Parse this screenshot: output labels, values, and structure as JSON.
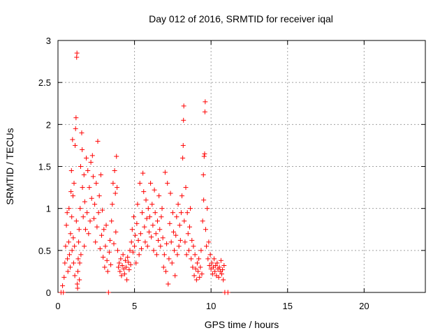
{
  "chart_data": {
    "type": "scatter",
    "title": "Day 012 of 2016, SRMTID for receiver iqal",
    "xlabel": "GPS time / hours",
    "ylabel": "SRMTID / TECUs",
    "xlim": [
      0,
      24
    ],
    "ylim": [
      0,
      3
    ],
    "xticks": [
      0,
      5,
      10,
      15,
      20
    ],
    "yticks": [
      0,
      0.5,
      1,
      1.5,
      2,
      2.5,
      3
    ],
    "xtick_labels": [
      "0",
      "5",
      "10",
      "15",
      "20"
    ],
    "ytick_labels": [
      "0",
      "0.5",
      "1",
      "1.5",
      "2",
      "2.5",
      "3"
    ],
    "grid": true,
    "marker": "+",
    "series": [
      {
        "name": "SRMTID",
        "color": "#ff0000",
        "points": [
          [
            0.2,
            0.0
          ],
          [
            0.35,
            0.0
          ],
          [
            0.3,
            0.08
          ],
          [
            0.4,
            0.18
          ],
          [
            0.45,
            0.35
          ],
          [
            0.5,
            0.55
          ],
          [
            0.55,
            0.8
          ],
          [
            0.6,
            0.95
          ],
          [
            0.62,
            0.4
          ],
          [
            0.65,
            0.25
          ],
          [
            0.7,
            0.6
          ],
          [
            0.72,
            1.0
          ],
          [
            0.75,
            0.45
          ],
          [
            0.8,
            0.3
          ],
          [
            0.82,
            0.7
          ],
          [
            0.85,
            1.2
          ],
          [
            0.88,
            1.45
          ],
          [
            0.9,
            0.9
          ],
          [
            0.92,
            0.5
          ],
          [
            0.95,
            1.82
          ],
          [
            0.98,
            1.15
          ],
          [
            1.0,
            0.65
          ],
          [
            1.02,
            0.35
          ],
          [
            1.05,
            1.3
          ],
          [
            1.08,
            0.55
          ],
          [
            1.1,
            0.2
          ],
          [
            1.12,
            1.75
          ],
          [
            1.15,
            1.95
          ],
          [
            1.18,
            2.08
          ],
          [
            1.2,
            0.85
          ],
          [
            1.22,
            2.8
          ],
          [
            1.24,
            2.85
          ],
          [
            1.26,
            0.1
          ],
          [
            1.28,
            0.05
          ],
          [
            1.3,
            0.25
          ],
          [
            1.32,
            0.4
          ],
          [
            1.35,
            0.6
          ],
          [
            1.38,
            0.75
          ],
          [
            1.4,
            0.15
          ],
          [
            1.42,
            0.35
          ],
          [
            1.45,
            1.0
          ],
          [
            1.48,
            1.5
          ],
          [
            1.5,
            0.45
          ],
          [
            1.55,
            1.9
          ],
          [
            1.58,
            1.7
          ],
          [
            1.6,
            1.25
          ],
          [
            1.65,
            0.9
          ],
          [
            1.7,
            1.4
          ],
          [
            1.72,
            0.55
          ],
          [
            1.75,
            1.08
          ],
          [
            1.8,
            0.75
          ],
          [
            1.85,
            1.6
          ],
          [
            1.9,
            0.95
          ],
          [
            1.95,
            1.45
          ],
          [
            2.0,
            0.7
          ],
          [
            2.05,
            1.25
          ],
          [
            2.1,
            0.85
          ],
          [
            2.15,
            1.55
          ],
          [
            2.2,
            1.12
          ],
          [
            2.25,
            1.63
          ],
          [
            2.3,
            1.38
          ],
          [
            2.35,
            0.88
          ],
          [
            2.4,
            1.05
          ],
          [
            2.45,
            0.6
          ],
          [
            2.5,
            1.3
          ],
          [
            2.55,
            0.78
          ],
          [
            2.6,
            1.8
          ],
          [
            2.65,
            0.95
          ],
          [
            2.7,
            1.15
          ],
          [
            2.75,
            0.52
          ],
          [
            2.8,
            1.4
          ],
          [
            2.85,
            0.68
          ],
          [
            2.9,
            0.98
          ],
          [
            2.95,
            0.42
          ],
          [
            3.0,
            0.75
          ],
          [
            3.05,
            0.3
          ],
          [
            3.1,
            0.55
          ],
          [
            3.15,
            0.8
          ],
          [
            3.2,
            0.38
          ],
          [
            3.25,
            0.25
          ],
          [
            3.3,
            0.0
          ],
          [
            3.35,
            0.48
          ],
          [
            3.4,
            0.62
          ],
          [
            3.45,
            0.33
          ],
          [
            3.5,
            0.85
          ],
          [
            3.55,
            1.05
          ],
          [
            3.6,
            1.3
          ],
          [
            3.65,
            0.58
          ],
          [
            3.7,
            1.45
          ],
          [
            3.75,
            1.18
          ],
          [
            3.78,
            0.72
          ],
          [
            3.82,
            1.62
          ],
          [
            3.86,
            1.25
          ],
          [
            3.9,
            0.5
          ],
          [
            3.95,
            0.3
          ],
          [
            4.0,
            0.35
          ],
          [
            4.05,
            0.25
          ],
          [
            4.1,
            0.4
          ],
          [
            4.15,
            0.2
          ],
          [
            4.2,
            0.32
          ],
          [
            4.25,
            0.45
          ],
          [
            4.3,
            0.28
          ],
          [
            4.35,
            0.22
          ],
          [
            4.4,
            0.38
          ],
          [
            4.45,
            0.3
          ],
          [
            4.5,
            0.15
          ],
          [
            4.55,
            0.42
          ],
          [
            4.6,
            0.36
          ],
          [
            4.65,
            0.27
          ],
          [
            4.7,
            0.5
          ],
          [
            4.75,
            0.33
          ],
          [
            4.8,
            0.6
          ],
          [
            4.85,
            0.75
          ],
          [
            4.9,
            0.48
          ],
          [
            4.95,
            0.9
          ],
          [
            5.0,
            0.55
          ],
          [
            5.05,
            0.68
          ],
          [
            5.1,
            0.35
          ],
          [
            5.15,
            0.82
          ],
          [
            5.2,
            1.05
          ],
          [
            5.25,
            0.62
          ],
          [
            5.3,
            0.45
          ],
          [
            5.35,
            1.3
          ],
          [
            5.4,
            0.7
          ],
          [
            5.45,
            0.52
          ],
          [
            5.5,
            0.95
          ],
          [
            5.55,
            1.42
          ],
          [
            5.6,
            1.2
          ],
          [
            5.65,
            0.78
          ],
          [
            5.7,
            0.6
          ],
          [
            5.75,
            1.1
          ],
          [
            5.8,
            0.88
          ],
          [
            5.85,
            0.55
          ],
          [
            5.9,
            1.0
          ],
          [
            5.95,
            0.72
          ],
          [
            6.0,
            0.9
          ],
          [
            6.05,
            1.3
          ],
          [
            6.1,
            0.66
          ],
          [
            6.15,
            1.05
          ],
          [
            6.2,
            0.8
          ],
          [
            6.25,
            0.5
          ],
          [
            6.3,
            1.22
          ],
          [
            6.35,
            0.95
          ],
          [
            6.4,
            0.7
          ],
          [
            6.45,
            0.45
          ],
          [
            6.5,
            0.85
          ],
          [
            6.55,
            0.62
          ],
          [
            6.6,
            1.15
          ],
          [
            6.65,
            0.75
          ],
          [
            6.7,
            0.55
          ],
          [
            6.75,
            0.9
          ],
          [
            6.8,
            1.0
          ],
          [
            6.85,
            0.65
          ],
          [
            6.9,
            0.3
          ],
          [
            6.95,
            0.45
          ],
          [
            7.0,
            1.43
          ],
          [
            7.05,
            0.25
          ],
          [
            7.1,
            0.58
          ],
          [
            7.15,
            1.3
          ],
          [
            7.2,
            0.1
          ],
          [
            7.25,
            0.4
          ],
          [
            7.3,
            0.82
          ],
          [
            7.35,
            1.18
          ],
          [
            7.4,
            0.6
          ],
          [
            7.45,
            0.35
          ],
          [
            7.5,
            0.95
          ],
          [
            7.55,
            0.72
          ],
          [
            7.6,
            0.5
          ],
          [
            7.65,
            0.2
          ],
          [
            7.7,
            0.68
          ],
          [
            7.75,
            0.9
          ],
          [
            7.8,
            0.45
          ],
          [
            7.85,
            1.05
          ],
          [
            7.9,
            0.55
          ],
          [
            7.95,
            0.8
          ],
          [
            8.0,
            0.62
          ],
          [
            8.05,
            0.95
          ],
          [
            8.1,
            1.15
          ],
          [
            8.15,
            1.6
          ],
          [
            8.18,
            1.75
          ],
          [
            8.2,
            2.05
          ],
          [
            8.22,
            2.22
          ],
          [
            8.25,
            0.85
          ],
          [
            8.3,
            0.6
          ],
          [
            8.35,
            1.25
          ],
          [
            8.4,
            0.45
          ],
          [
            8.45,
            0.95
          ],
          [
            8.5,
            0.7
          ],
          [
            8.55,
            0.5
          ],
          [
            8.6,
            0.78
          ],
          [
            8.65,
            1.0
          ],
          [
            8.7,
            0.4
          ],
          [
            8.75,
            0.62
          ],
          [
            8.8,
            0.3
          ],
          [
            8.85,
            0.55
          ],
          [
            8.9,
            0.2
          ],
          [
            8.95,
            0.45
          ],
          [
            9.0,
            0.28
          ],
          [
            9.05,
            0.15
          ],
          [
            9.1,
            0.35
          ],
          [
            9.15,
            0.25
          ],
          [
            9.2,
            0.4
          ],
          [
            9.25,
            0.18
          ],
          [
            9.3,
            0.3
          ],
          [
            9.35,
            0.5
          ],
          [
            9.4,
            0.22
          ],
          [
            9.45,
            0.85
          ],
          [
            9.5,
            1.4
          ],
          [
            9.52,
            1.1
          ],
          [
            9.55,
            1.62
          ],
          [
            9.58,
            1.65
          ],
          [
            9.6,
            2.15
          ],
          [
            9.62,
            2.27
          ],
          [
            9.65,
            0.75
          ],
          [
            9.7,
            0.55
          ],
          [
            9.75,
            1.0
          ],
          [
            9.8,
            0.4
          ],
          [
            9.85,
            0.6
          ],
          [
            9.9,
            0.32
          ],
          [
            9.95,
            0.45
          ],
          [
            10.0,
            0.28
          ],
          [
            10.05,
            0.35
          ],
          [
            10.1,
            0.22
          ],
          [
            10.15,
            0.3
          ],
          [
            10.2,
            0.4
          ],
          [
            10.25,
            0.25
          ],
          [
            10.3,
            0.32
          ],
          [
            10.35,
            0.2
          ],
          [
            10.4,
            0.35
          ],
          [
            10.45,
            0.28
          ],
          [
            10.5,
            0.18
          ],
          [
            10.55,
            0.3
          ],
          [
            10.6,
            0.25
          ],
          [
            10.65,
            0.38
          ],
          [
            10.7,
            0.22
          ],
          [
            10.75,
            0.27
          ],
          [
            10.8,
            0.15
          ],
          [
            10.85,
            0.32
          ],
          [
            10.9,
            0.0
          ],
          [
            11.1,
            0.0
          ]
        ]
      }
    ]
  }
}
